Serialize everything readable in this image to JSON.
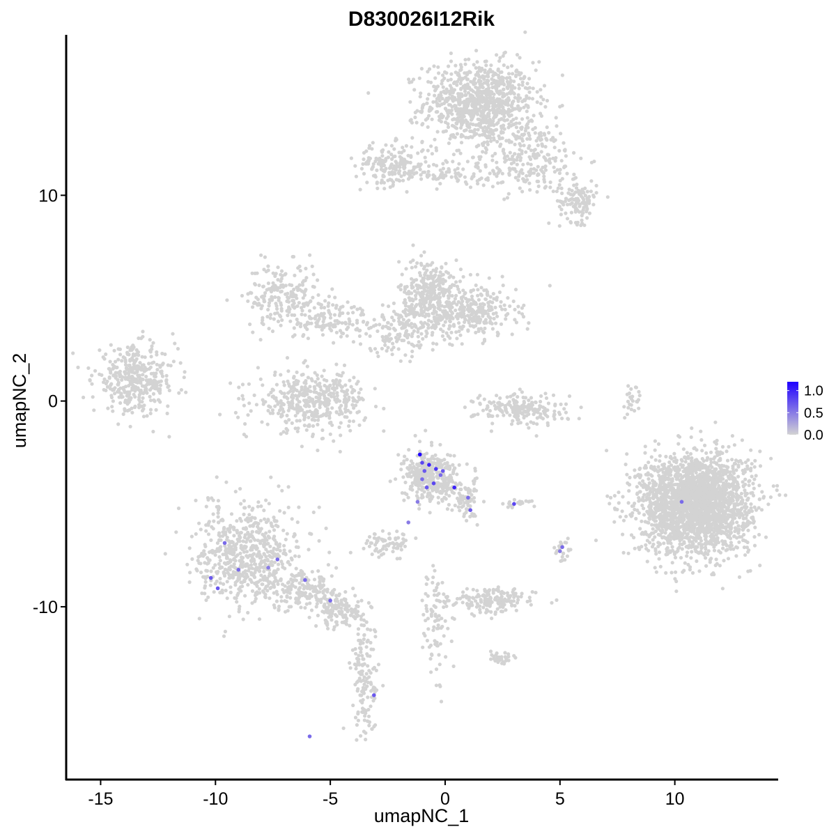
{
  "chart_data": {
    "type": "scatter",
    "title": "D830026I12Rik",
    "xlabel": "umapNC_1",
    "ylabel": "umapNC_2",
    "xlim": [
      -16.5,
      14.5
    ],
    "ylim": [
      -18.4,
      17.8
    ],
    "x_ticks": [
      {
        "value": -15,
        "label": "-15"
      },
      {
        "value": -10,
        "label": "-10"
      },
      {
        "value": -5,
        "label": "-5"
      },
      {
        "value": 0,
        "label": "0"
      },
      {
        "value": 5,
        "label": "5"
      },
      {
        "value": 10,
        "label": "10"
      }
    ],
    "y_ticks": [
      {
        "value": 10,
        "label": "10"
      },
      {
        "value": 0,
        "label": "0"
      },
      {
        "value": -10,
        "label": "-10"
      }
    ],
    "grid": false,
    "legend": {
      "placement": "right",
      "type": "colorbar",
      "min": 0.0,
      "max": 1.2,
      "low_color": "#d3d3d3",
      "high_color": "#1f00ff",
      "ticks": [
        {
          "value": 1.0,
          "label": "1.0"
        },
        {
          "value": 0.5,
          "label": "0.5"
        },
        {
          "value": 0.0,
          "label": "0.0"
        }
      ]
    },
    "clusters": [
      {
        "cx": 1.5,
        "cy": 14.5,
        "sx": 1.2,
        "sy": 1.0,
        "n": 900
      },
      {
        "cx": 3.5,
        "cy": 11.8,
        "sx": 1.3,
        "sy": 0.9,
        "n": 260
      },
      {
        "cx": 5.8,
        "cy": 9.7,
        "sx": 0.4,
        "sy": 0.5,
        "n": 120
      },
      {
        "cx": -2.3,
        "cy": 11.5,
        "sx": 0.8,
        "sy": 0.5,
        "n": 180
      },
      {
        "cx": 0.0,
        "cy": 11.0,
        "sx": 1.0,
        "sy": 0.2,
        "n": 70
      },
      {
        "cx": -7.1,
        "cy": 5.1,
        "sx": 0.8,
        "sy": 0.8,
        "n": 200
      },
      {
        "cx": -5.0,
        "cy": 4.0,
        "sx": 0.9,
        "sy": 0.5,
        "n": 130
      },
      {
        "cx": -0.6,
        "cy": 5.1,
        "sx": 0.7,
        "sy": 0.9,
        "n": 360
      },
      {
        "cx": 1.3,
        "cy": 4.3,
        "sx": 0.9,
        "sy": 0.6,
        "n": 260
      },
      {
        "cx": -2.0,
        "cy": 3.4,
        "sx": 0.9,
        "sy": 0.6,
        "n": 140
      },
      {
        "cx": -13.5,
        "cy": 1.0,
        "sx": 0.9,
        "sy": 0.8,
        "n": 380
      },
      {
        "cx": -5.8,
        "cy": 0.0,
        "sx": 1.2,
        "sy": 0.7,
        "n": 420
      },
      {
        "cx": 3.3,
        "cy": -0.4,
        "sx": 1.0,
        "sy": 0.4,
        "n": 200
      },
      {
        "cx": 10.9,
        "cy": -5.0,
        "sx": 1.2,
        "sy": 1.2,
        "n": 2400
      },
      {
        "cx": -0.6,
        "cy": -3.7,
        "sx": 0.6,
        "sy": 0.6,
        "n": 380
      },
      {
        "cx": 0.9,
        "cy": -4.8,
        "sx": 0.3,
        "sy": 0.5,
        "n": 70
      },
      {
        "cx": -8.6,
        "cy": -7.5,
        "sx": 1.1,
        "sy": 1.2,
        "n": 650
      },
      {
        "cx": -6.0,
        "cy": -9.2,
        "sx": 0.8,
        "sy": 0.5,
        "n": 160
      },
      {
        "cx": -4.5,
        "cy": -10.2,
        "sx": 0.6,
        "sy": 0.4,
        "n": 130
      },
      {
        "cx": -3.5,
        "cy": -13.5,
        "sx": 0.3,
        "sy": 1.5,
        "n": 140
      },
      {
        "cx": -2.5,
        "cy": -6.9,
        "sx": 0.5,
        "sy": 0.3,
        "n": 70
      },
      {
        "cx": 2.1,
        "cy": -9.7,
        "sx": 0.9,
        "sy": 0.3,
        "n": 170
      },
      {
        "cx": 2.4,
        "cy": -12.5,
        "sx": 0.3,
        "sy": 0.2,
        "n": 30
      },
      {
        "cx": -0.4,
        "cy": -10.5,
        "sx": 0.3,
        "sy": 1.4,
        "n": 90
      },
      {
        "cx": 8.1,
        "cy": 0.0,
        "sx": 0.2,
        "sy": 0.5,
        "n": 25
      },
      {
        "cx": 5.1,
        "cy": -7.3,
        "sx": 0.2,
        "sy": 0.3,
        "n": 25
      },
      {
        "cx": 3.1,
        "cy": -5.0,
        "sx": 0.4,
        "sy": 0.1,
        "n": 20
      }
    ],
    "expressing_cells": [
      {
        "x": -1.1,
        "y": -2.6,
        "v": 1.2
      },
      {
        "x": -1.0,
        "y": -3.0,
        "v": 0.8
      },
      {
        "x": -0.7,
        "y": -3.1,
        "v": 1.0
      },
      {
        "x": -0.4,
        "y": -3.3,
        "v": 0.9
      },
      {
        "x": -0.1,
        "y": -3.4,
        "v": 0.7
      },
      {
        "x": 0.4,
        "y": -4.2,
        "v": 1.0
      },
      {
        "x": -0.5,
        "y": -4.0,
        "v": 0.8
      },
      {
        "x": -0.8,
        "y": -4.2,
        "v": 0.7
      },
      {
        "x": -1.0,
        "y": -3.8,
        "v": 0.6
      },
      {
        "x": -1.2,
        "y": -4.9,
        "v": 0.5
      },
      {
        "x": -0.2,
        "y": -3.6,
        "v": 0.6
      },
      {
        "x": -0.9,
        "y": -3.4,
        "v": 0.7
      },
      {
        "x": 1.0,
        "y": -4.7,
        "v": 0.6
      },
      {
        "x": 1.1,
        "y": -5.3,
        "v": 0.7
      },
      {
        "x": -1.6,
        "y": -5.9,
        "v": 0.5
      },
      {
        "x": 3.0,
        "y": -5.0,
        "v": 0.8
      },
      {
        "x": 5.1,
        "y": -7.1,
        "v": 0.6
      },
      {
        "x": 5.0,
        "y": -7.3,
        "v": 0.5
      },
      {
        "x": 10.3,
        "y": -4.9,
        "v": 0.6
      },
      {
        "x": -9.6,
        "y": -6.9,
        "v": 0.6
      },
      {
        "x": -10.2,
        "y": -8.6,
        "v": 0.7
      },
      {
        "x": -9.9,
        "y": -9.1,
        "v": 0.7
      },
      {
        "x": -9.0,
        "y": -8.2,
        "v": 0.6
      },
      {
        "x": -7.7,
        "y": -8.1,
        "v": 0.5
      },
      {
        "x": -7.3,
        "y": -7.7,
        "v": 0.6
      },
      {
        "x": -6.1,
        "y": -8.7,
        "v": 0.6
      },
      {
        "x": -5.0,
        "y": -9.7,
        "v": 0.6
      },
      {
        "x": -3.1,
        "y": -14.3,
        "v": 0.7
      },
      {
        "x": -5.9,
        "y": -16.3,
        "v": 0.6
      }
    ]
  }
}
